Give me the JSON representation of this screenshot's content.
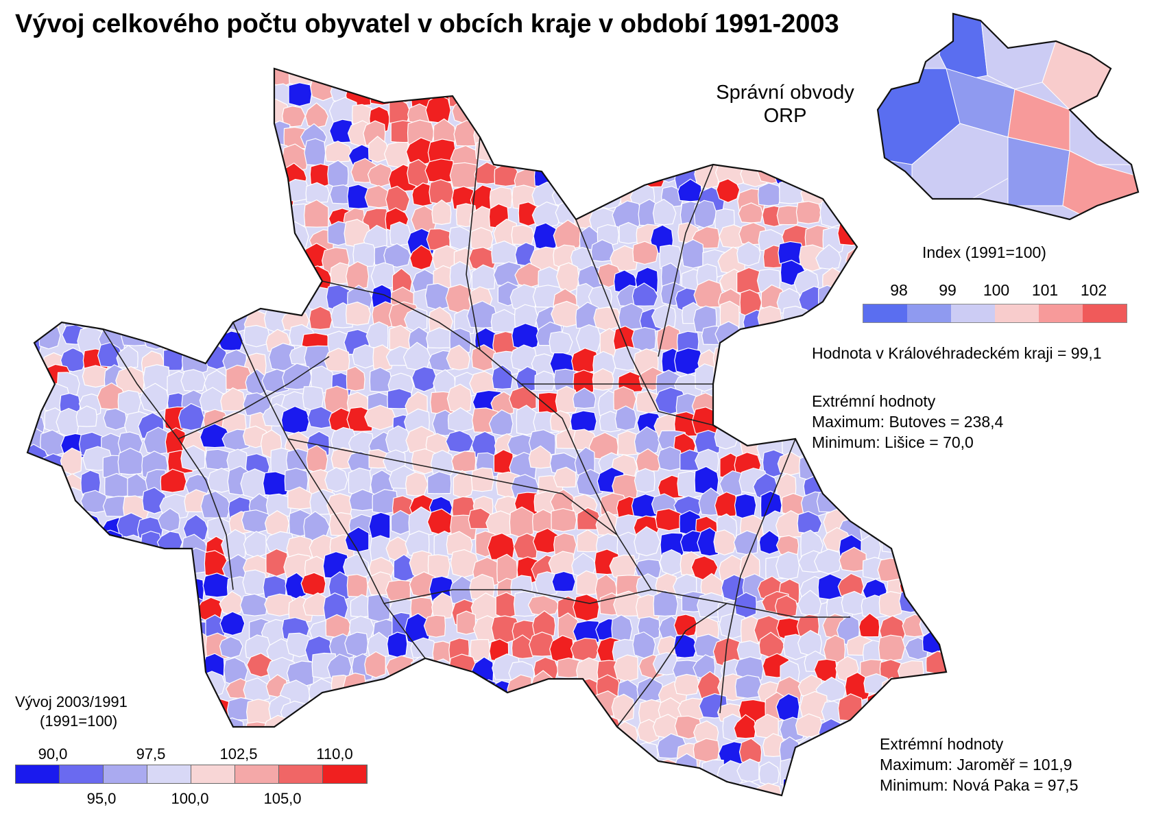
{
  "title": "Vývoj celkového počtu obyvatel v obcích kraje v období 1991-2003",
  "inset": {
    "title_line1": "Správní obvody",
    "title_line2": "ORP",
    "index_title": "Index (1991=100)",
    "index_ticks": [
      "98",
      "99",
      "100",
      "101",
      "102"
    ],
    "index_colors": [
      "#5a6ef0",
      "#8f9af0",
      "#ccccf4",
      "#f8cccc",
      "#f79a9a",
      "#f05a5a"
    ],
    "region_value": "Hodnota v Královéhradeckém kraji = 99,1",
    "extremes_title": "Extrémní hodnoty",
    "max_text": "Maximum: Butoves = 238,4",
    "min_text": "Minimum: Lišice = 70,0"
  },
  "main_legend": {
    "title_line1": "Vývoj 2003/1991",
    "title_line2": "(1991=100)",
    "ticks_top": [
      "90,0",
      "97,5",
      "102,5",
      "110,0"
    ],
    "ticks_bottom": [
      "95,0",
      "100,0",
      "105,0"
    ],
    "colors": [
      "#1a1aee",
      "#6a6af0",
      "#aaaaf0",
      "#d8d8f6",
      "#f8d6d6",
      "#f4a8a8",
      "#f06666",
      "#f02020"
    ]
  },
  "orp_extremes": {
    "title": "Extrémní hodnoty",
    "max_text": "Maximum: Jaroměř = 101,9",
    "min_text": "Minimum: Nová Paka = 97,5"
  }
}
